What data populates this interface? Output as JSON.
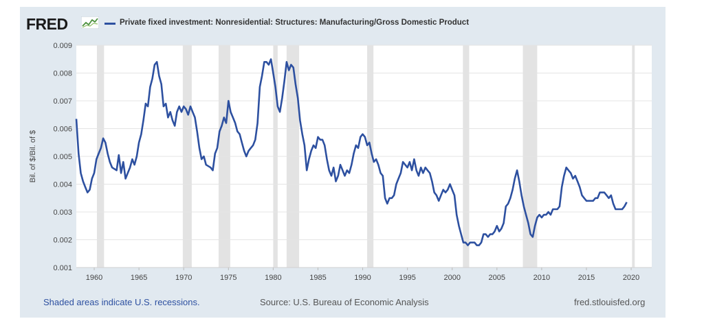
{
  "header": {
    "logo_text": "FRED",
    "logo_icon": "chart-line-icon",
    "series_title": "Private fixed investment: Nonresidential: Structures: Manufacturing/Gross Domestic Product"
  },
  "footer": {
    "recession_note": "Shaded areas indicate U.S. recessions.",
    "source": "Source: U.S. Bureau of Economic Analysis",
    "url": "fred.stlouisfed.org"
  },
  "colors": {
    "line": "#2d50a0",
    "panel": "#e1e9f0",
    "recession": "#e3e3e3",
    "grid": "#e4e4e4"
  },
  "chart_data": {
    "type": "line",
    "title": "Private fixed investment: Nonresidential: Structures: Manufacturing/Gross Domestic Product",
    "ylabel": "Bil. of $/Bil. of $",
    "xlabel": "",
    "xlim": [
      1958.0,
      2022.3
    ],
    "ylim": [
      0.001,
      0.009
    ],
    "yticks": [
      0.001,
      0.002,
      0.003,
      0.004,
      0.005,
      0.006,
      0.007,
      0.008,
      0.009
    ],
    "ytick_labels": [
      "0.001",
      "0.002",
      "0.003",
      "0.004",
      "0.005",
      "0.006",
      "0.007",
      "0.008",
      "0.009"
    ],
    "xticks": [
      1960,
      1965,
      1970,
      1975,
      1980,
      1985,
      1990,
      1995,
      2000,
      2005,
      2010,
      2015,
      2020
    ],
    "xtick_labels": [
      "1960",
      "1965",
      "1970",
      "1975",
      "1980",
      "1985",
      "1990",
      "1995",
      "2000",
      "2005",
      "2010",
      "2015",
      "2020"
    ],
    "grid": true,
    "recessions": [
      [
        1960.3,
        1961.1
      ],
      [
        1969.9,
        1970.9
      ],
      [
        1973.9,
        1975.2
      ],
      [
        1980.0,
        1980.5
      ],
      [
        1981.5,
        1982.9
      ],
      [
        1990.5,
        1991.2
      ],
      [
        2001.2,
        2001.9
      ],
      [
        2007.9,
        2009.5
      ],
      [
        2020.1,
        2020.4
      ]
    ],
    "series": [
      {
        "name": "Private fixed investment: Nonresidential: Structures: Manufacturing/Gross Domestic Product",
        "points": [
          [
            1958.0,
            0.00635
          ],
          [
            1958.25,
            0.0051
          ],
          [
            1958.5,
            0.0044
          ],
          [
            1958.75,
            0.0041
          ],
          [
            1959.0,
            0.0039
          ],
          [
            1959.25,
            0.0037
          ],
          [
            1959.5,
            0.0038
          ],
          [
            1959.75,
            0.0042
          ],
          [
            1960.0,
            0.0044
          ],
          [
            1960.25,
            0.0049
          ],
          [
            1960.5,
            0.0051
          ],
          [
            1960.75,
            0.0053
          ],
          [
            1961.0,
            0.00565
          ],
          [
            1961.25,
            0.0055
          ],
          [
            1961.5,
            0.0051
          ],
          [
            1961.75,
            0.0048
          ],
          [
            1962.0,
            0.0046
          ],
          [
            1962.25,
            0.00455
          ],
          [
            1962.5,
            0.0045
          ],
          [
            1962.75,
            0.00505
          ],
          [
            1963.0,
            0.0044
          ],
          [
            1963.25,
            0.0048
          ],
          [
            1963.5,
            0.0042
          ],
          [
            1963.75,
            0.0044
          ],
          [
            1964.0,
            0.0046
          ],
          [
            1964.25,
            0.0049
          ],
          [
            1964.5,
            0.0047
          ],
          [
            1964.75,
            0.005
          ],
          [
            1965.0,
            0.0055
          ],
          [
            1965.25,
            0.0058
          ],
          [
            1965.5,
            0.0063
          ],
          [
            1965.75,
            0.0069
          ],
          [
            1966.0,
            0.0068
          ],
          [
            1966.25,
            0.0075
          ],
          [
            1966.5,
            0.0078
          ],
          [
            1966.75,
            0.0083
          ],
          [
            1967.0,
            0.0084
          ],
          [
            1967.25,
            0.0079
          ],
          [
            1967.5,
            0.0076
          ],
          [
            1967.75,
            0.0068
          ],
          [
            1968.0,
            0.0069
          ],
          [
            1968.25,
            0.0064
          ],
          [
            1968.5,
            0.0066
          ],
          [
            1968.75,
            0.0063
          ],
          [
            1969.0,
            0.0061
          ],
          [
            1969.25,
            0.0066
          ],
          [
            1969.5,
            0.0068
          ],
          [
            1969.75,
            0.0066
          ],
          [
            1970.0,
            0.0068
          ],
          [
            1970.25,
            0.0067
          ],
          [
            1970.5,
            0.0065
          ],
          [
            1970.75,
            0.0068
          ],
          [
            1971.0,
            0.0066
          ],
          [
            1971.25,
            0.0064
          ],
          [
            1971.5,
            0.0059
          ],
          [
            1971.75,
            0.0053
          ],
          [
            1972.0,
            0.0049
          ],
          [
            1972.25,
            0.005
          ],
          [
            1972.5,
            0.0047
          ],
          [
            1972.75,
            0.00465
          ],
          [
            1973.0,
            0.0046
          ],
          [
            1973.25,
            0.0045
          ],
          [
            1973.5,
            0.0051
          ],
          [
            1973.75,
            0.0053
          ],
          [
            1974.0,
            0.0059
          ],
          [
            1974.25,
            0.0061
          ],
          [
            1974.5,
            0.0064
          ],
          [
            1974.75,
            0.0062
          ],
          [
            1975.0,
            0.007
          ],
          [
            1975.25,
            0.0066
          ],
          [
            1975.5,
            0.0064
          ],
          [
            1975.75,
            0.0062
          ],
          [
            1976.0,
            0.0059
          ],
          [
            1976.25,
            0.0058
          ],
          [
            1976.5,
            0.0055
          ],
          [
            1976.75,
            0.0052
          ],
          [
            1977.0,
            0.005
          ],
          [
            1977.25,
            0.0052
          ],
          [
            1977.5,
            0.0053
          ],
          [
            1977.75,
            0.0054
          ],
          [
            1978.0,
            0.0056
          ],
          [
            1978.25,
            0.0062
          ],
          [
            1978.5,
            0.0075
          ],
          [
            1978.75,
            0.0079
          ],
          [
            1979.0,
            0.0084
          ],
          [
            1979.25,
            0.0084
          ],
          [
            1979.5,
            0.0083
          ],
          [
            1979.75,
            0.0085
          ],
          [
            1980.0,
            0.008
          ],
          [
            1980.25,
            0.0075
          ],
          [
            1980.5,
            0.0068
          ],
          [
            1980.75,
            0.0066
          ],
          [
            1981.0,
            0.0071
          ],
          [
            1981.25,
            0.0077
          ],
          [
            1981.5,
            0.0084
          ],
          [
            1981.75,
            0.0081
          ],
          [
            1982.0,
            0.0083
          ],
          [
            1982.25,
            0.0082
          ],
          [
            1982.5,
            0.0076
          ],
          [
            1982.75,
            0.0071
          ],
          [
            1983.0,
            0.0063
          ],
          [
            1983.25,
            0.0058
          ],
          [
            1983.5,
            0.0054
          ],
          [
            1983.75,
            0.0045
          ],
          [
            1984.0,
            0.0049
          ],
          [
            1984.25,
            0.0052
          ],
          [
            1984.5,
            0.0054
          ],
          [
            1984.75,
            0.0053
          ],
          [
            1985.0,
            0.0057
          ],
          [
            1985.25,
            0.0056
          ],
          [
            1985.5,
            0.0056
          ],
          [
            1985.75,
            0.0054
          ],
          [
            1986.0,
            0.0049
          ],
          [
            1986.25,
            0.0045
          ],
          [
            1986.5,
            0.0043
          ],
          [
            1986.75,
            0.0046
          ],
          [
            1987.0,
            0.0041
          ],
          [
            1987.25,
            0.0043
          ],
          [
            1987.5,
            0.0047
          ],
          [
            1987.75,
            0.0045
          ],
          [
            1988.0,
            0.0043
          ],
          [
            1988.25,
            0.0045
          ],
          [
            1988.5,
            0.0044
          ],
          [
            1988.75,
            0.0047
          ],
          [
            1989.0,
            0.0051
          ],
          [
            1989.25,
            0.0054
          ],
          [
            1989.5,
            0.0053
          ],
          [
            1989.75,
            0.0057
          ],
          [
            1990.0,
            0.0058
          ],
          [
            1990.25,
            0.0057
          ],
          [
            1990.5,
            0.0054
          ],
          [
            1990.75,
            0.0055
          ],
          [
            1991.0,
            0.0051
          ],
          [
            1991.25,
            0.0048
          ],
          [
            1991.5,
            0.0049
          ],
          [
            1991.75,
            0.0047
          ],
          [
            1992.0,
            0.0044
          ],
          [
            1992.25,
            0.0043
          ],
          [
            1992.5,
            0.0035
          ],
          [
            1992.75,
            0.0033
          ],
          [
            1993.0,
            0.0035
          ],
          [
            1993.25,
            0.0035
          ],
          [
            1993.5,
            0.0036
          ],
          [
            1993.75,
            0.004
          ],
          [
            1994.0,
            0.0042
          ],
          [
            1994.25,
            0.0044
          ],
          [
            1994.5,
            0.0048
          ],
          [
            1994.75,
            0.0047
          ],
          [
            1995.0,
            0.0046
          ],
          [
            1995.25,
            0.0048
          ],
          [
            1995.5,
            0.0045
          ],
          [
            1995.75,
            0.0049
          ],
          [
            1996.0,
            0.0045
          ],
          [
            1996.25,
            0.0043
          ],
          [
            1996.5,
            0.0046
          ],
          [
            1996.75,
            0.0044
          ],
          [
            1997.0,
            0.0046
          ],
          [
            1997.25,
            0.0045
          ],
          [
            1997.5,
            0.0044
          ],
          [
            1997.75,
            0.0041
          ],
          [
            1998.0,
            0.0037
          ],
          [
            1998.25,
            0.0036
          ],
          [
            1998.5,
            0.0034
          ],
          [
            1998.75,
            0.0036
          ],
          [
            1999.0,
            0.0038
          ],
          [
            1999.25,
            0.0037
          ],
          [
            1999.5,
            0.0038
          ],
          [
            1999.75,
            0.004
          ],
          [
            2000.0,
            0.0038
          ],
          [
            2000.25,
            0.0036
          ],
          [
            2000.5,
            0.0029
          ],
          [
            2000.75,
            0.0025
          ],
          [
            2001.0,
            0.0022
          ],
          [
            2001.25,
            0.0019
          ],
          [
            2001.5,
            0.0019
          ],
          [
            2001.75,
            0.0018
          ],
          [
            2002.0,
            0.0019
          ],
          [
            2002.25,
            0.0019
          ],
          [
            2002.5,
            0.0019
          ],
          [
            2002.75,
            0.0018
          ],
          [
            2003.0,
            0.0018
          ],
          [
            2003.25,
            0.0019
          ],
          [
            2003.5,
            0.0022
          ],
          [
            2003.75,
            0.0022
          ],
          [
            2004.0,
            0.0021
          ],
          [
            2004.25,
            0.0022
          ],
          [
            2004.5,
            0.0022
          ],
          [
            2004.75,
            0.0023
          ],
          [
            2005.0,
            0.0025
          ],
          [
            2005.25,
            0.0023
          ],
          [
            2005.5,
            0.0024
          ],
          [
            2005.75,
            0.0026
          ],
          [
            2006.0,
            0.0032
          ],
          [
            2006.25,
            0.0033
          ],
          [
            2006.5,
            0.0035
          ],
          [
            2006.75,
            0.0038
          ],
          [
            2007.0,
            0.0042
          ],
          [
            2007.25,
            0.0045
          ],
          [
            2007.5,
            0.0041
          ],
          [
            2007.75,
            0.0036
          ],
          [
            2008.0,
            0.0032
          ],
          [
            2008.25,
            0.0029
          ],
          [
            2008.5,
            0.0026
          ],
          [
            2008.75,
            0.0022
          ],
          [
            2009.0,
            0.0021
          ],
          [
            2009.25,
            0.0025
          ],
          [
            2009.5,
            0.0028
          ],
          [
            2009.75,
            0.0029
          ],
          [
            2010.0,
            0.0028
          ],
          [
            2010.25,
            0.0029
          ],
          [
            2010.5,
            0.0029
          ],
          [
            2010.75,
            0.003
          ],
          [
            2011.0,
            0.0029
          ],
          [
            2011.25,
            0.0031
          ],
          [
            2011.5,
            0.0031
          ],
          [
            2011.75,
            0.0031
          ],
          [
            2012.0,
            0.0032
          ],
          [
            2012.25,
            0.0039
          ],
          [
            2012.5,
            0.0043
          ],
          [
            2012.75,
            0.0046
          ],
          [
            2013.0,
            0.0045
          ],
          [
            2013.25,
            0.0044
          ],
          [
            2013.5,
            0.0042
          ],
          [
            2013.75,
            0.0043
          ],
          [
            2014.0,
            0.0041
          ],
          [
            2014.25,
            0.0039
          ],
          [
            2014.5,
            0.0036
          ],
          [
            2014.75,
            0.0035
          ],
          [
            2015.0,
            0.0034
          ],
          [
            2015.25,
            0.0034
          ],
          [
            2015.5,
            0.0034
          ],
          [
            2015.75,
            0.0034
          ],
          [
            2016.0,
            0.0035
          ],
          [
            2016.25,
            0.0035
          ],
          [
            2016.5,
            0.0037
          ],
          [
            2016.75,
            0.0037
          ],
          [
            2017.0,
            0.0037
          ],
          [
            2017.25,
            0.0036
          ],
          [
            2017.5,
            0.0035
          ],
          [
            2017.75,
            0.0036
          ],
          [
            2018.0,
            0.0033
          ],
          [
            2018.25,
            0.0031
          ],
          [
            2018.5,
            0.0031
          ],
          [
            2018.75,
            0.0031
          ],
          [
            2019.0,
            0.0031
          ],
          [
            2019.25,
            0.0032
          ],
          [
            2019.5,
            0.00335
          ]
        ]
      }
    ]
  }
}
